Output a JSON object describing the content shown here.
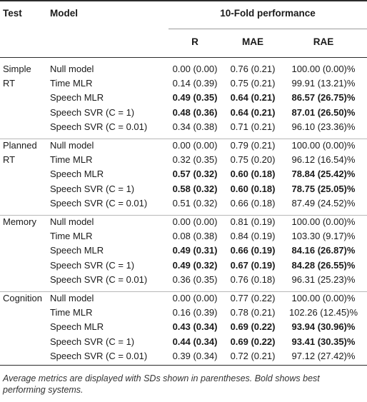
{
  "headers": {
    "test": "Test",
    "model": "Model",
    "performance": "10-Fold performance",
    "r": "R",
    "mae": "MAE",
    "rae": "RAE"
  },
  "groups": [
    {
      "test_line1": "Simple",
      "test_line2": "RT",
      "rows": [
        {
          "model": "Null model",
          "r": "0.00 (0.00)",
          "mae": "0.76 (0.21)",
          "rae": "100.00 (0.00)%",
          "bold": false
        },
        {
          "model": "Time MLR",
          "r": "0.14 (0.39)",
          "mae": "0.75 (0.21)",
          "rae": "99.91 (13.21)%",
          "bold": false
        },
        {
          "model": "Speech MLR",
          "r": "0.49 (0.35)",
          "mae": "0.64 (0.21)",
          "rae": "86.57 (26.75)%",
          "bold": true
        },
        {
          "model": "Speech SVR (C = 1)",
          "r": "0.48 (0.36)",
          "mae": "0.64 (0.21)",
          "rae": "87.01 (26.50)%",
          "bold": true
        },
        {
          "model": "Speech SVR (C = 0.01)",
          "r": "0.34 (0.38)",
          "mae": "0.71 (0.21)",
          "rae": "96.10 (23.36)%",
          "bold": false
        }
      ]
    },
    {
      "test_line1": "Planned",
      "test_line2": "RT",
      "rows": [
        {
          "model": "Null model",
          "r": "0.00 (0.00)",
          "mae": "0.79 (0.21)",
          "rae": "100.00 (0.00)%",
          "bold": false
        },
        {
          "model": "Time MLR",
          "r": "0.32 (0.35)",
          "mae": "0.75 (0.20)",
          "rae": "96.12 (16.54)%",
          "bold": false
        },
        {
          "model": "Speech MLR",
          "r": "0.57 (0.32)",
          "mae": "0.60 (0.18)",
          "rae": "78.84 (25.42)%",
          "bold": true
        },
        {
          "model": "Speech SVR (C = 1)",
          "r": "0.58 (0.32)",
          "mae": "0.60 (0.18)",
          "rae": "78.75 (25.05)%",
          "bold": true
        },
        {
          "model": "Speech SVR (C = 0.01)",
          "r": "0.51 (0.32)",
          "mae": "0.66 (0.18)",
          "rae": "87.49 (24.52)%",
          "bold": false
        }
      ]
    },
    {
      "test_line1": "Memory",
      "test_line2": "",
      "rows": [
        {
          "model": "Null model",
          "r": "0.00 (0.00)",
          "mae": "0.81 (0.19)",
          "rae": "100.00 (0.00)%",
          "bold": false
        },
        {
          "model": "Time MLR",
          "r": "0.08 (0.38)",
          "mae": "0.84 (0.19)",
          "rae": "103.30 (9.17)%",
          "bold": false
        },
        {
          "model": "Speech MLR",
          "r": "0.49 (0.31)",
          "mae": "0.66 (0.19)",
          "rae": "84.16 (26.87)%",
          "bold": true
        },
        {
          "model": "Speech SVR (C = 1)",
          "r": "0.49 (0.32)",
          "mae": "0.67 (0.19)",
          "rae": "84.28 (26.55)%",
          "bold": true
        },
        {
          "model": "Speech SVR (C = 0.01)",
          "r": "0.36 (0.35)",
          "mae": "0.76 (0.18)",
          "rae": "96.31 (25.23)%",
          "bold": false
        }
      ]
    },
    {
      "test_line1": "Cognition",
      "test_line2": "",
      "rows": [
        {
          "model": "Null model",
          "r": "0.00 (0.00)",
          "mae": "0.77 (0.22)",
          "rae": "100.00 (0.00)%",
          "bold": false
        },
        {
          "model": "Time MLR",
          "r": "0.16 (0.39)",
          "mae": "0.78 (0.21)",
          "rae": "102.26 (12.45)%",
          "bold": false
        },
        {
          "model": "Speech MLR",
          "r": "0.43 (0.34)",
          "mae": "0.69 (0.22)",
          "rae": "93.94 (30.96)%",
          "bold": true
        },
        {
          "model": "Speech SVR (C = 1)",
          "r": "0.44 (0.34)",
          "mae": "0.69 (0.22)",
          "rae": "93.41 (30.35)%",
          "bold": true
        },
        {
          "model": "Speech SVR (C = 0.01)",
          "r": "0.39 (0.34)",
          "mae": "0.72 (0.21)",
          "rae": "97.12 (27.42)%",
          "bold": false
        }
      ]
    }
  ],
  "footnote": "Average metrics are displayed with SDs shown in parentheses. Bold shows best performing systems."
}
